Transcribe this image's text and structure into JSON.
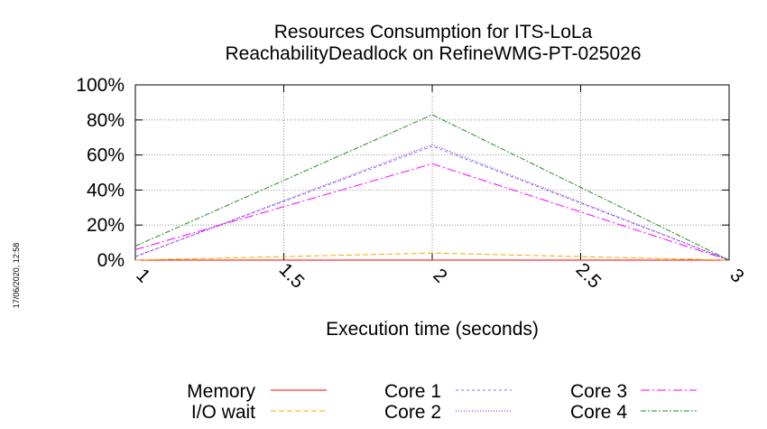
{
  "chart_data": {
    "type": "line",
    "title": [
      "Resources Consumption for ITS-LoLa",
      "ReachabilityDeadlock on RefineWMG-PT-025026"
    ],
    "xlabel": "Execution time (seconds)",
    "ylabel": "",
    "xlim": [
      1,
      3
    ],
    "ylim": [
      0,
      100
    ],
    "x_ticks": [
      "1",
      "1.5",
      "2",
      "2.5",
      "3"
    ],
    "y_ticks": [
      "0%",
      "20%",
      "40%",
      "60%",
      "80%",
      "100%"
    ],
    "grid": true,
    "legend_position": "bottom",
    "x": [
      1,
      2,
      3
    ],
    "series": [
      {
        "name": "Memory",
        "color": "#ff0000",
        "dash": "none",
        "values": [
          0,
          0,
          0
        ]
      },
      {
        "name": "I/O wait",
        "color": "#ffa500",
        "dash": "6,3",
        "values": [
          0,
          4,
          0
        ]
      },
      {
        "name": "Core 1",
        "color": "#7070ff",
        "dash": "3,3",
        "values": [
          2,
          65,
          0
        ]
      },
      {
        "name": "Core 2",
        "color": "#9400d3",
        "dash": "1,2",
        "values": [
          2,
          66,
          0
        ]
      },
      {
        "name": "Core 3",
        "color": "#ff00ff",
        "dash": "10,3,2,3",
        "values": [
          6,
          55,
          0
        ]
      },
      {
        "name": "Core 4",
        "color": "#228b22",
        "dash": "6,2,2,2",
        "values": [
          8,
          83,
          0
        ]
      }
    ]
  },
  "timestamp": "17/06/2020, 12:58"
}
